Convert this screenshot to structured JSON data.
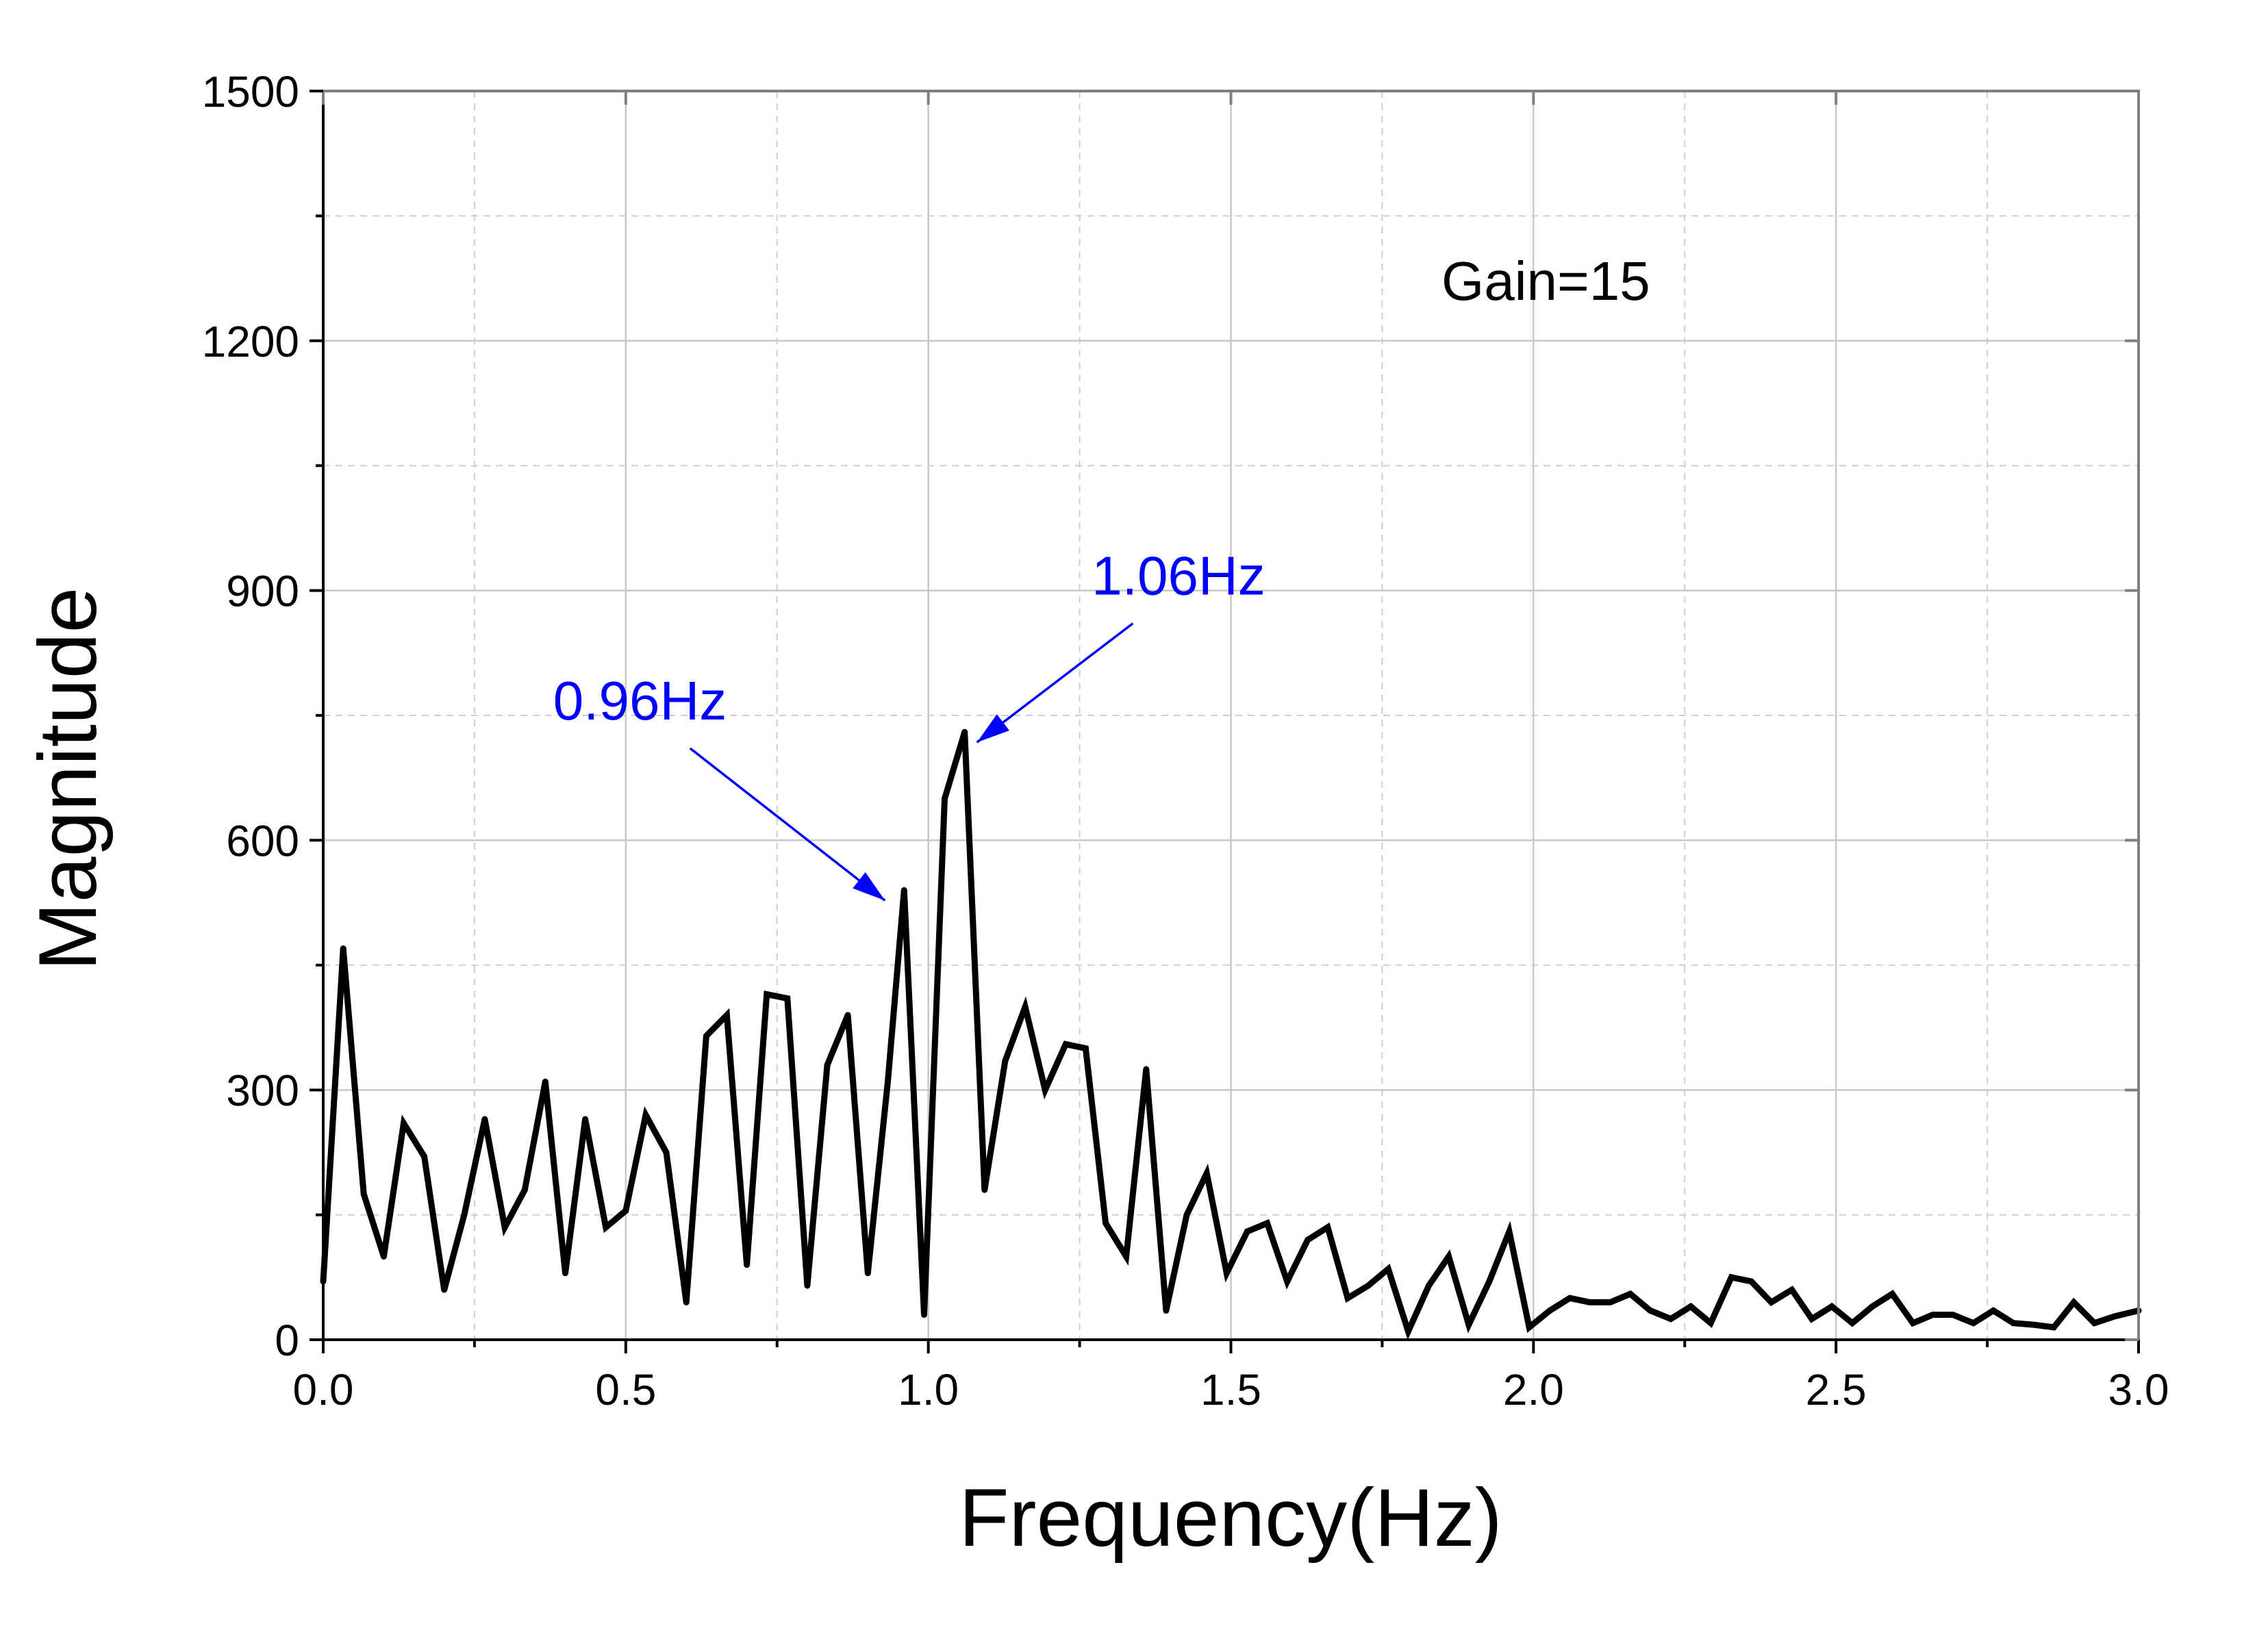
{
  "chart_data": {
    "type": "line",
    "xlabel": "Frequency(Hz)",
    "ylabel": "Magnitude",
    "xlim": [
      0.0,
      3.0
    ],
    "ylim": [
      0,
      1500
    ],
    "x_ticks": [
      "0.0",
      "0.5",
      "1.0",
      "1.5",
      "2.0",
      "2.5",
      "3.0"
    ],
    "y_ticks": [
      "0",
      "300",
      "600",
      "900",
      "1200",
      "1500"
    ],
    "grid": true,
    "note": "Gain=15",
    "annotation_color": "#0000ff",
    "line_color": "#000000",
    "annotations": [
      {
        "text": "0.96Hz",
        "x": 0.96,
        "y": 540,
        "label_x": 0.38,
        "label_y": 745
      },
      {
        "text": "1.06Hz",
        "x": 1.06,
        "y": 730,
        "label_x": 1.27,
        "label_y": 895
      }
    ],
    "series": [
      {
        "x": [
          0.0,
          0.033,
          0.067,
          0.1,
          0.133,
          0.167,
          0.2,
          0.233,
          0.267,
          0.3,
          0.333,
          0.367,
          0.4,
          0.433,
          0.467,
          0.5,
          0.533,
          0.567,
          0.6,
          0.633,
          0.667,
          0.7,
          0.733,
          0.767,
          0.8,
          0.833,
          0.867,
          0.9,
          0.933,
          0.96,
          0.993,
          1.027,
          1.06,
          1.093,
          1.127,
          1.16,
          1.193,
          1.227,
          1.26,
          1.293,
          1.327,
          1.36,
          1.393,
          1.427,
          1.46,
          1.493,
          1.527,
          1.56,
          1.593,
          1.627,
          1.66,
          1.693,
          1.727,
          1.76,
          1.793,
          1.827,
          1.86,
          1.893,
          1.927,
          1.96,
          1.993,
          2.027,
          2.06,
          2.093,
          2.127,
          2.16,
          2.193,
          2.227,
          2.26,
          2.293,
          2.327,
          2.36,
          2.393,
          2.427,
          2.46,
          2.493,
          2.527,
          2.56,
          2.593,
          2.627,
          2.66,
          2.693,
          2.727,
          2.76,
          2.793,
          2.827,
          2.86,
          2.893,
          2.927,
          2.96,
          3.0
        ],
        "values": [
          70,
          470,
          175,
          100,
          260,
          220,
          60,
          150,
          265,
          135,
          180,
          310,
          80,
          265,
          135,
          155,
          270,
          225,
          45,
          365,
          390,
          90,
          415,
          410,
          65,
          330,
          390,
          80,
          310,
          540,
          30,
          650,
          730,
          180,
          335,
          400,
          300,
          355,
          350,
          140,
          100,
          325,
          35,
          150,
          200,
          80,
          130,
          140,
          70,
          120,
          135,
          50,
          65,
          85,
          10,
          65,
          100,
          18,
          70,
          130,
          15,
          35,
          50,
          45,
          45,
          55,
          35,
          25,
          40,
          20,
          75,
          70,
          45,
          60,
          25,
          40,
          20,
          40,
          55,
          20,
          30,
          30,
          20,
          35,
          20,
          18,
          15,
          45,
          20,
          28,
          35
        ]
      }
    ]
  }
}
